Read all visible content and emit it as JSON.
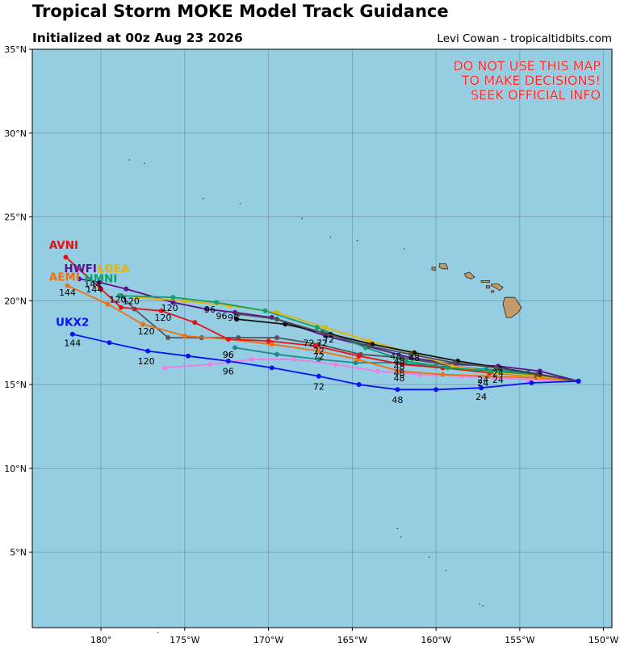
{
  "header": {
    "title": "Tropical Storm MOKE Model Track Guidance",
    "subtitle": "Initialized at 00z Aug 23 2026",
    "credit": "Levi Cowan - tropicaltidbits.com"
  },
  "warning": [
    "DO NOT USE THIS MAP",
    "TO MAKE DECISIONS!",
    "SEEK OFFICIAL INFO"
  ],
  "colors": {
    "ocean": "#95cde3",
    "land": "#c49a6a",
    "grid": "#5a6f7a",
    "warning": "#ff2020"
  },
  "chart_data": {
    "type": "map",
    "projection": "equirectangular",
    "lon_range": [
      -184.1,
      -149.5
    ],
    "lat_range": [
      0.5,
      35
    ],
    "lon_ticks": [
      {
        "v": -180,
        "label": "180°"
      },
      {
        "v": -175,
        "label": "175°W"
      },
      {
        "v": -170,
        "label": "170°W"
      },
      {
        "v": -165,
        "label": "165°W"
      },
      {
        "v": -160,
        "label": "160°W"
      },
      {
        "v": -155,
        "label": "155°W"
      },
      {
        "v": -150,
        "label": "150°W"
      }
    ],
    "lat_ticks": [
      {
        "v": 5,
        "label": "5°N"
      },
      {
        "v": 10,
        "label": "10°N"
      },
      {
        "v": 15,
        "label": "15°N"
      },
      {
        "v": 20,
        "label": "20°N"
      },
      {
        "v": 25,
        "label": "25°N"
      },
      {
        "v": 30,
        "label": "30°N"
      },
      {
        "v": 35,
        "label": "35°N"
      }
    ],
    "grid": true,
    "tracks": [
      {
        "model": "",
        "color": "#f07de6",
        "points": [
          [
            -151.5,
            15.2
          ],
          [
            -154.5,
            15.3
          ],
          [
            -156.5,
            15.4
          ],
          [
            -158.5,
            15.5
          ],
          [
            -161.0,
            15.6
          ],
          [
            -163.5,
            15.8
          ],
          [
            -166.0,
            16.2
          ],
          [
            -168.5,
            16.5
          ],
          [
            -171.0,
            16.5
          ],
          [
            -173.5,
            16.2
          ],
          [
            -176.2,
            16.0
          ]
        ],
        "labels": []
      },
      {
        "model": "",
        "color": "#555555",
        "points": [
          [
            -151.5,
            15.2
          ],
          [
            -154.0,
            15.5
          ],
          [
            -156.5,
            15.8
          ],
          [
            -159.0,
            16.1
          ],
          [
            -162.0,
            16.6
          ],
          [
            -164.5,
            16.8
          ],
          [
            -167.0,
            17.4
          ],
          [
            -169.5,
            17.8
          ],
          [
            -171.8,
            17.8
          ],
          [
            -174.0,
            17.8
          ],
          [
            -176.0,
            17.8
          ],
          [
            -178.0,
            19.5
          ],
          [
            -178.8,
            20.3
          ]
        ],
        "labels": [
          {
            "text": "48",
            "lon": -162.2,
            "lat": 16.2
          }
        ]
      },
      {
        "model": "",
        "color": "#1b8c8c",
        "points": [
          [
            -151.5,
            15.2
          ],
          [
            -154.5,
            15.7
          ],
          [
            -157.0,
            15.9
          ],
          [
            -160.0,
            16.1
          ],
          [
            -162.3,
            16.3
          ],
          [
            -164.8,
            16.3
          ],
          [
            -167.0,
            16.5
          ],
          [
            -169.5,
            16.8
          ],
          [
            -172.0,
            17.2
          ]
        ],
        "labels": [
          {
            "text": "96",
            "lon": -172.4,
            "lat": 16.6
          }
        ]
      },
      {
        "model": "AEMI",
        "color": "#f07010",
        "points": [
          [
            -151.5,
            15.2
          ],
          [
            -154.0,
            15.4
          ],
          [
            -156.9,
            15.5
          ],
          [
            -159.6,
            15.6
          ],
          [
            -162.2,
            15.8
          ],
          [
            -164.7,
            16.5
          ],
          [
            -167.0,
            17.0
          ],
          [
            -169.8,
            17.4
          ],
          [
            -172.4,
            17.7
          ],
          [
            -175.0,
            17.9
          ],
          [
            -177.5,
            18.6
          ],
          [
            -179.6,
            19.8
          ],
          [
            -182.0,
            20.9
          ]
        ],
        "labels": [
          {
            "text": "24",
            "lon": -157.2,
            "lat": 14.9
          },
          {
            "text": "48",
            "lon": -162.2,
            "lat": 15.2
          },
          {
            "text": "72",
            "lon": -167.0,
            "lat": 16.5
          },
          {
            "text": "120",
            "lon": -177.3,
            "lat": 18.0
          },
          {
            "text": "144",
            "lon": -182.0,
            "lat": 20.3
          }
        ],
        "name_pos": {
          "lon": -183.1,
          "lat": 21.2
        }
      },
      {
        "model": "AVNI",
        "color": "#e81010",
        "points": [
          [
            -151.5,
            15.2
          ],
          [
            -154.0,
            15.5
          ],
          [
            -156.8,
            15.7
          ],
          [
            -159.6,
            16.0
          ],
          [
            -162.0,
            16.2
          ],
          [
            -164.6,
            16.7
          ],
          [
            -167.2,
            17.3
          ],
          [
            -170.0,
            17.6
          ],
          [
            -172.4,
            17.7
          ],
          [
            -174.4,
            18.7
          ],
          [
            -176.4,
            19.4
          ],
          [
            -178.8,
            19.6
          ],
          [
            -180.0,
            20.7
          ],
          [
            -182.1,
            22.6
          ]
        ],
        "labels": [
          {
            "text": "24",
            "lon": -157.2,
            "lat": 15.1
          },
          {
            "text": "48",
            "lon": -162.2,
            "lat": 15.9
          },
          {
            "text": "72",
            "lon": -167.0,
            "lat": 16.8
          },
          {
            "text": "96",
            "lon": -172.4,
            "lat": 16.6
          },
          {
            "text": "120",
            "lon": -176.3,
            "lat": 18.8
          },
          {
            "text": "144",
            "lon": -180.4,
            "lat": 20.5
          }
        ],
        "name_pos": {
          "lon": -183.1,
          "lat": 23.1
        }
      },
      {
        "model": "HWFI",
        "color": "#5a1090",
        "points": [
          [
            -151.5,
            15.2
          ],
          [
            -153.8,
            15.8
          ],
          [
            -156.3,
            16.1
          ],
          [
            -158.9,
            16.2
          ],
          [
            -161.5,
            16.6
          ],
          [
            -164.2,
            17.3
          ],
          [
            -166.6,
            17.9
          ],
          [
            -169.8,
            19.0
          ],
          [
            -172.0,
            19.3
          ],
          [
            -173.7,
            19.5
          ],
          [
            -175.7,
            19.9
          ],
          [
            -178.5,
            20.7
          ],
          [
            -180.1,
            21.1
          ],
          [
            -181.3,
            21.3
          ]
        ],
        "labels": [
          {
            "text": "96",
            "lon": -172.8,
            "lat": 18.9
          },
          {
            "text": "120",
            "lon": -175.9,
            "lat": 19.4
          }
        ],
        "name_pos": {
          "lon": -182.2,
          "lat": 21.7
        }
      },
      {
        "model": "LGEA",
        "color": "#e6b400",
        "points": [
          [
            -151.5,
            15.2
          ],
          [
            -153.9,
            15.5
          ],
          [
            -156.4,
            15.7
          ],
          [
            -159.0,
            16.1
          ],
          [
            -161.5,
            16.9
          ],
          [
            -164.0,
            17.6
          ],
          [
            -166.6,
            18.4
          ],
          [
            -169.5,
            19.3
          ],
          [
            -172.3,
            19.7
          ],
          [
            -175.0,
            20.0
          ],
          [
            -177.9,
            20.2
          ]
        ],
        "labels": [
          {
            "text": "120",
            "lon": -178.2,
            "lat": 19.8
          }
        ],
        "name_pos": {
          "lon": -180.2,
          "lat": 21.7
        }
      },
      {
        "model": "HMNI",
        "color": "#10a070",
        "points": [
          [
            -151.5,
            15.2
          ],
          [
            -154.0,
            15.6
          ],
          [
            -156.7,
            15.8
          ],
          [
            -159.3,
            16.0
          ],
          [
            -161.8,
            16.4
          ],
          [
            -164.2,
            17.2
          ],
          [
            -167.1,
            18.4
          ],
          [
            -170.2,
            19.4
          ],
          [
            -173.1,
            19.9
          ],
          [
            -175.7,
            20.2
          ],
          [
            -178.9,
            20.3
          ]
        ],
        "labels": [],
        "name_pos": {
          "lon": -181.0,
          "lat": 21.1
        }
      },
      {
        "model": "",
        "color": "#111111",
        "points": [
          [
            -151.5,
            15.2
          ],
          [
            -153.8,
            15.6
          ],
          [
            -156.2,
            16.0
          ],
          [
            -158.7,
            16.4
          ],
          [
            -161.3,
            16.9
          ],
          [
            -163.8,
            17.4
          ],
          [
            -166.3,
            18.0
          ],
          [
            -169.0,
            18.6
          ],
          [
            -171.9,
            18.9
          ]
        ],
        "labels": [
          {
            "text": "96",
            "lon": -172.1,
            "lat": 18.8
          }
        ]
      },
      {
        "model": "",
        "color": "#505050",
        "points": [
          [
            -151.5,
            15.2
          ],
          [
            -154.0,
            15.6
          ],
          [
            -156.4,
            16.0
          ],
          [
            -158.9,
            16.3
          ],
          [
            -161.5,
            16.8
          ],
          [
            -164.0,
            17.3
          ],
          [
            -166.8,
            18.1
          ],
          [
            -169.5,
            18.9
          ],
          [
            -171.8,
            19.2
          ]
        ],
        "labels": []
      },
      {
        "model": "UKX2",
        "color": "#0a14f0",
        "points": [
          [
            -151.5,
            15.2
          ],
          [
            -154.3,
            15.1
          ],
          [
            -157.3,
            14.8
          ],
          [
            -160.0,
            14.7
          ],
          [
            -162.3,
            14.7
          ],
          [
            -164.6,
            15.0
          ],
          [
            -167.0,
            15.5
          ],
          [
            -169.8,
            16.0
          ],
          [
            -172.4,
            16.4
          ],
          [
            -174.8,
            16.7
          ],
          [
            -177.2,
            17.0
          ],
          [
            -179.5,
            17.5
          ],
          [
            -181.7,
            18.0
          ]
        ],
        "labels": [
          {
            "text": "24",
            "lon": -157.3,
            "lat": 14.1
          },
          {
            "text": "48",
            "lon": -162.3,
            "lat": 13.9
          },
          {
            "text": "72",
            "lon": -167.0,
            "lat": 14.7
          },
          {
            "text": "96",
            "lon": -172.4,
            "lat": 15.6
          },
          {
            "text": "120",
            "lon": -177.3,
            "lat": 16.2
          },
          {
            "text": "144",
            "lon": -181.7,
            "lat": 17.3
          }
        ],
        "name_pos": {
          "lon": -182.7,
          "lat": 18.5
        }
      }
    ],
    "extra_labels": [
      {
        "text": "24",
        "lon": -156.3,
        "lat": 15.1
      },
      {
        "text": "24",
        "lon": -156.3,
        "lat": 15.5
      },
      {
        "text": "48",
        "lon": -162.2,
        "lat": 15.5
      },
      {
        "text": "48",
        "lon": -162.4,
        "lat": 16.5
      },
      {
        "text": "48",
        "lon": -161.3,
        "lat": 16.4
      },
      {
        "text": "72",
        "lon": -167.6,
        "lat": 17.3
      },
      {
        "text": "72",
        "lon": -166.8,
        "lat": 17.3
      },
      {
        "text": "72",
        "lon": -166.4,
        "lat": 17.5
      },
      {
        "text": "96",
        "lon": -173.5,
        "lat": 19.3
      },
      {
        "text": "120",
        "lon": -179.0,
        "lat": 19.9
      },
      {
        "text": "144",
        "lon": -180.5,
        "lat": 20.8
      }
    ],
    "islands": [
      {
        "name": "Hawaii",
        "points": [
          [
            -155.9,
            20.2
          ],
          [
            -155.3,
            20.2
          ],
          [
            -154.9,
            19.6
          ],
          [
            -155.1,
            19.3
          ],
          [
            -155.5,
            19.0
          ],
          [
            -155.8,
            19.0
          ],
          [
            -155.9,
            19.4
          ],
          [
            -156.0,
            19.8
          ]
        ]
      },
      {
        "name": "Maui",
        "points": [
          [
            -156.7,
            21.0
          ],
          [
            -156.3,
            21.0
          ],
          [
            -156.0,
            20.8
          ],
          [
            -156.2,
            20.6
          ],
          [
            -156.5,
            20.8
          ],
          [
            -156.7,
            20.9
          ]
        ]
      },
      {
        "name": "Molokai",
        "points": [
          [
            -157.3,
            21.2
          ],
          [
            -156.8,
            21.2
          ],
          [
            -156.8,
            21.1
          ],
          [
            -157.3,
            21.1
          ]
        ]
      },
      {
        "name": "Lanai",
        "points": [
          [
            -157.0,
            20.9
          ],
          [
            -156.8,
            20.9
          ],
          [
            -156.8,
            20.75
          ],
          [
            -157.0,
            20.75
          ]
        ]
      },
      {
        "name": "Kahoolawe",
        "points": [
          [
            -156.7,
            20.6
          ],
          [
            -156.55,
            20.6
          ],
          [
            -156.55,
            20.5
          ],
          [
            -156.7,
            20.5
          ]
        ]
      },
      {
        "name": "Oahu",
        "points": [
          [
            -158.3,
            21.6
          ],
          [
            -158.0,
            21.7
          ],
          [
            -157.7,
            21.4
          ],
          [
            -157.9,
            21.3
          ],
          [
            -158.2,
            21.4
          ]
        ]
      },
      {
        "name": "Kauai",
        "points": [
          [
            -159.8,
            22.2
          ],
          [
            -159.4,
            22.2
          ],
          [
            -159.3,
            21.9
          ],
          [
            -159.6,
            21.9
          ],
          [
            -159.8,
            22.0
          ]
        ]
      },
      {
        "name": "Niihau",
        "points": [
          [
            -160.25,
            22.0
          ],
          [
            -160.05,
            22.0
          ],
          [
            -160.05,
            21.8
          ],
          [
            -160.25,
            21.85
          ]
        ]
      }
    ],
    "islets": [
      [
        -177.4,
        28.2
      ],
      [
        -178.3,
        28.4
      ],
      [
        -166.3,
        23.8
      ],
      [
        -161.9,
        23.1
      ],
      [
        -164.7,
        23.6
      ],
      [
        -171.7,
        25.8
      ],
      [
        -173.9,
        26.1
      ],
      [
        -168.0,
        24.9
      ],
      [
        -162.3,
        6.4
      ],
      [
        -162.1,
        5.9
      ],
      [
        -160.4,
        4.7
      ],
      [
        -159.4,
        3.9
      ],
      [
        -157.4,
        1.9
      ],
      [
        -157.2,
        1.8
      ],
      [
        -176.6,
        0.2
      ]
    ]
  }
}
